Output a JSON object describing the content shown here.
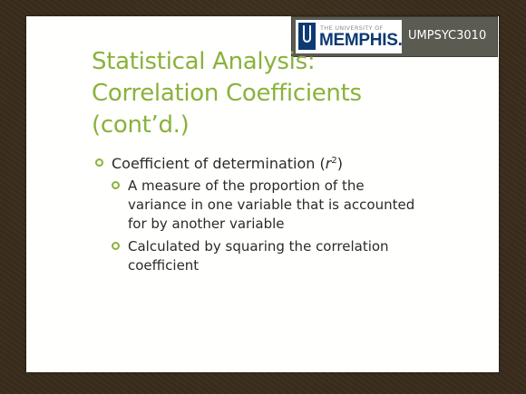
{
  "header": {
    "logo_top": "THE UNIVERSITY OF",
    "logo_word": "MEMPHIS.",
    "logo_icon": "university-u-icon",
    "course_code": "UMPSYC3010"
  },
  "title": {
    "lines": [
      "Statistical Analysis:",
      "Correlation Coefficients",
      "(cont’d.)"
    ]
  },
  "bullets": {
    "main": {
      "text": "Coefficient of determination (",
      "var": "r",
      "exp": "2",
      "close": ")"
    },
    "sub": [
      {
        "lines": [
          "A measure of the proportion of the",
          "variance in one variable that is accounted",
          "for by another variable"
        ]
      },
      {
        "lines": [
          "Calculated by squaring the correlation",
          "coefficient"
        ]
      }
    ]
  },
  "colors": {
    "accent": "#8ab23c",
    "brand_blue": "#0d3a73",
    "banner": "#5b5b52"
  }
}
